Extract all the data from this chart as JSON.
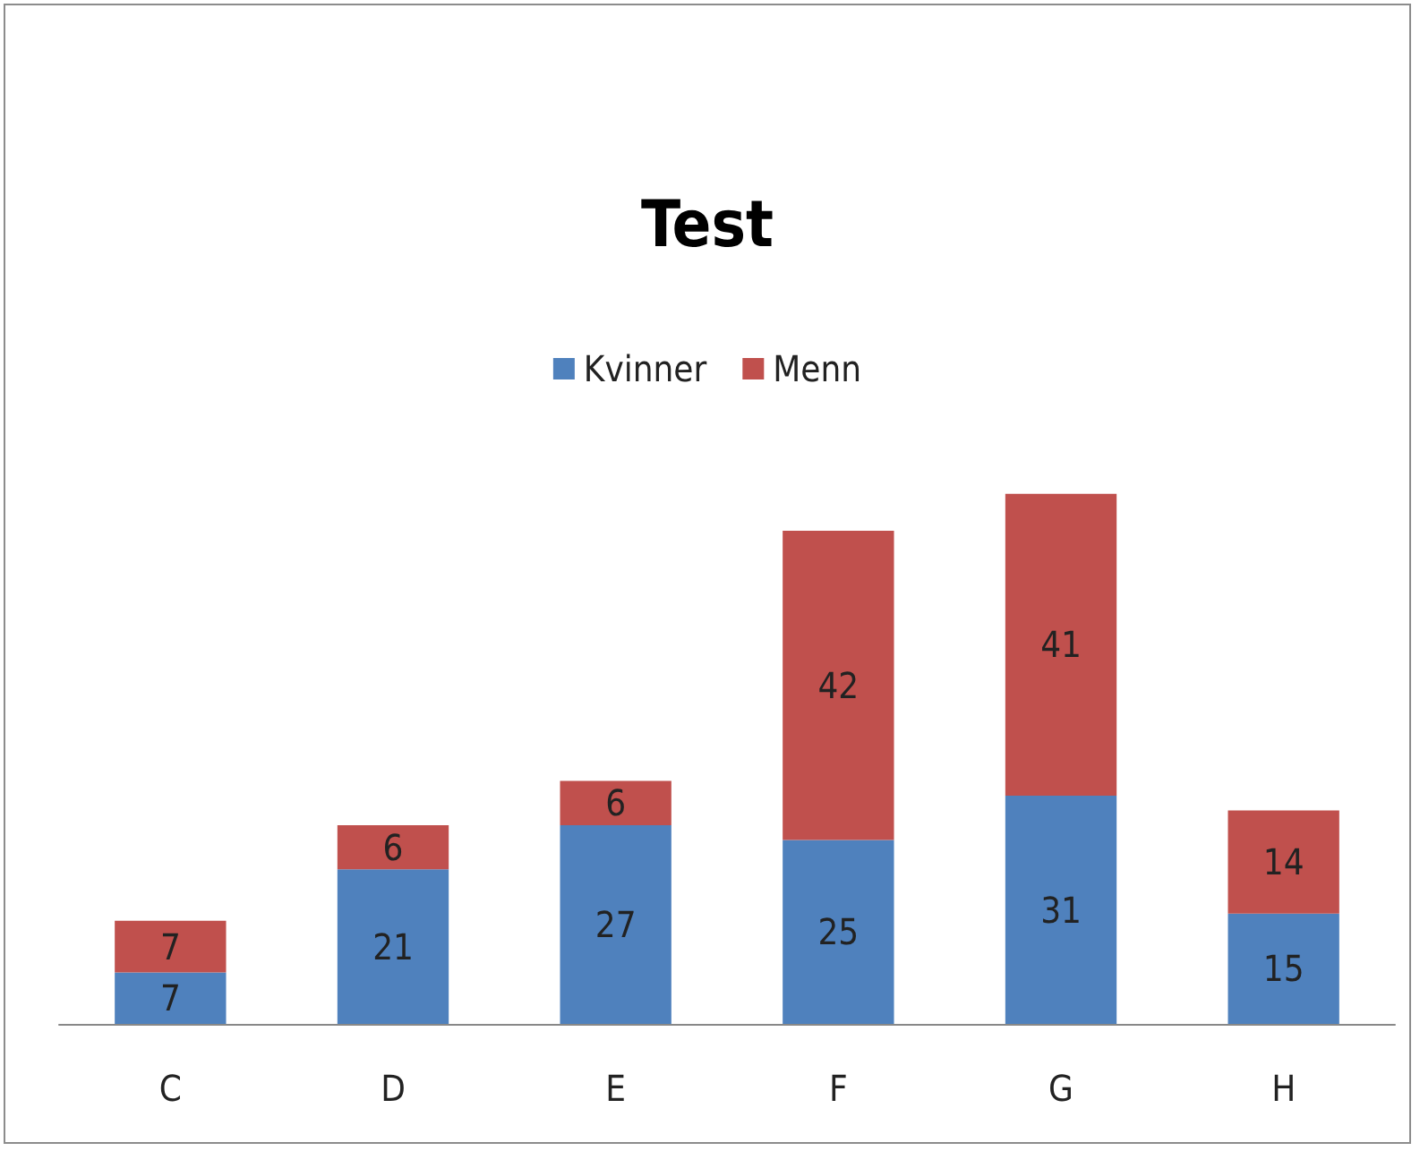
{
  "chart_data": {
    "type": "bar",
    "title": "Test",
    "categories": [
      "C",
      "D",
      "E",
      "F",
      "G",
      "H"
    ],
    "series": [
      {
        "name": "Kvinner",
        "color": "#4f81bd",
        "values": [
          7,
          21,
          27,
          25,
          31,
          15
        ]
      },
      {
        "name": "Menn",
        "color": "#c0504d",
        "values": [
          7,
          6,
          6,
          42,
          41,
          14
        ]
      }
    ],
    "stacked": true,
    "data_labels": true,
    "legend": "top",
    "tick_labels": "x"
  }
}
